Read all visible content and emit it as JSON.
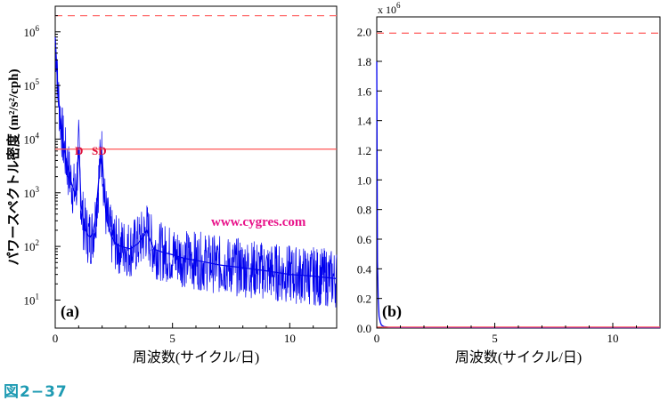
{
  "figure_label": "図2−37",
  "watermark": "www.cygres.com",
  "chart_data": [
    {
      "type": "line",
      "panel_label": "(a)",
      "xlabel": "周波数(サイクル/日)",
      "ylabel": "パワースペクトル密度 (m²/s²/cph)",
      "xlim": [
        0,
        12
      ],
      "ylim": [
        3,
        3000000
      ],
      "yscale": "log",
      "x_ticks": [
        0,
        5,
        10
      ],
      "y_ticks": [
        {
          "value": 10,
          "label_base": "10",
          "label_exp": "1"
        },
        {
          "value": 100,
          "label_base": "10",
          "label_exp": "2"
        },
        {
          "value": 1000,
          "label_base": "10",
          "label_exp": "3"
        },
        {
          "value": 10000,
          "label_base": "10",
          "label_exp": "4"
        },
        {
          "value": 100000,
          "label_base": "10",
          "label_exp": "5"
        },
        {
          "value": 1000000,
          "label_base": "10",
          "label_exp": "6"
        }
      ],
      "series": [
        {
          "color": "#0000ee",
          "x": [
            0.0,
            0.05,
            0.1,
            0.2,
            0.3,
            0.4,
            0.5,
            0.6,
            0.7,
            0.8,
            0.9,
            0.95,
            1.0,
            1.05,
            1.1,
            1.2,
            1.3,
            1.4,
            1.5,
            1.6,
            1.7,
            1.8,
            1.9,
            1.95,
            2.0,
            2.05,
            2.1,
            2.2,
            2.4,
            2.6,
            2.8,
            3.0,
            3.2,
            3.5,
            3.8,
            3.9,
            4.0,
            4.2,
            4.5,
            5.0,
            5.5,
            6.0,
            6.5,
            7.0,
            8.0,
            9.0,
            10.0,
            11.0,
            12.0
          ],
          "values": [
            800000,
            300000,
            100000,
            30000,
            12000,
            6000,
            3500,
            2200,
            1500,
            1100,
            900,
            3000,
            7000,
            2500,
            600,
            300,
            200,
            160,
            150,
            180,
            300,
            900,
            3000,
            6500,
            5000,
            2000,
            800,
            300,
            150,
            110,
            100,
            95,
            90,
            110,
            160,
            200,
            150,
            90,
            80,
            70,
            60,
            55,
            50,
            45,
            40,
            35,
            30,
            28,
            25
          ]
        }
      ],
      "reference_lines": [
        {
          "y": 2000000,
          "style": "dashed",
          "color": "#ff6b6b"
        },
        {
          "y": 6500,
          "style": "solid",
          "color": "#ff5555"
        }
      ],
      "annotations": [
        {
          "text": "D",
          "x": 1.0,
          "y": 8000,
          "color": "#e0103a"
        },
        {
          "text": "SD",
          "x": 1.95,
          "y": 8000,
          "color": "#e0103a"
        }
      ]
    },
    {
      "type": "line",
      "panel_label": "(b)",
      "xlabel": "周波数(サイクル/日)",
      "ylabel": "",
      "multiplier_base": "x 10",
      "multiplier_exp": "6",
      "xlim": [
        0,
        12
      ],
      "ylim": [
        0,
        2.1
      ],
      "x_ticks": [
        0,
        5,
        10
      ],
      "y_ticks": [
        "0.0",
        "0.2",
        "0.4",
        "0.6",
        "0.8",
        "1.0",
        "1.2",
        "1.4",
        "1.6",
        "1.8",
        "2.0"
      ],
      "series": [
        {
          "color": "#0000ee",
          "x": [
            0.0,
            0.03,
            0.06,
            0.1,
            0.15,
            0.2,
            0.3,
            0.5,
            1.0,
            2.0,
            5.0,
            12.0
          ],
          "values": [
            1.8,
            0.45,
            0.2,
            0.08,
            0.04,
            0.02,
            0.01,
            0.005,
            0.004,
            0.004,
            0.003,
            0.003
          ]
        }
      ],
      "reference_lines": [
        {
          "y": 1.99,
          "style": "dashed",
          "color": "#ff6b6b"
        },
        {
          "y": 0.0065,
          "style": "solid",
          "color": "#ff5555"
        }
      ]
    }
  ]
}
